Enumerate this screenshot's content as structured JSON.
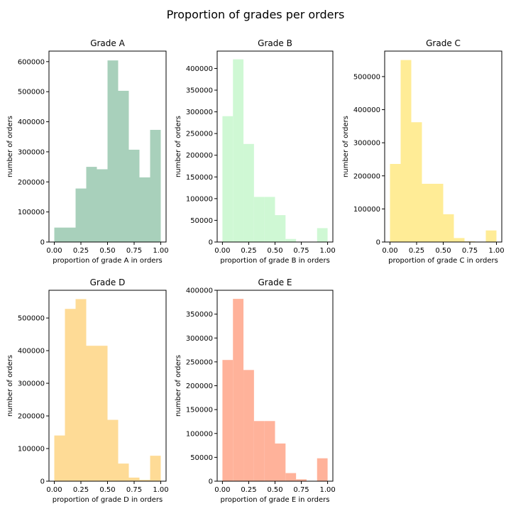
{
  "figure": {
    "title": "Proportion of grades per orders"
  },
  "chart_data": [
    {
      "type": "bar",
      "title": "Grade A",
      "xlabel": "proportion of grade A in orders",
      "ylabel": "number of orders",
      "color": "#a8d0bb",
      "xlim": [
        -0.05,
        1.05
      ],
      "ylim": [
        0,
        635000
      ],
      "xticks": [
        0.0,
        0.25,
        0.5,
        0.75,
        1.0
      ],
      "xtick_labels": [
        "0.00",
        "0.25",
        "0.50",
        "0.75",
        "1.00"
      ],
      "yticks": [
        0,
        100000,
        200000,
        300000,
        400000,
        500000,
        600000
      ],
      "ytick_labels": [
        "0",
        "100000",
        "200000",
        "300000",
        "400000",
        "500000",
        "600000"
      ],
      "bin_edges": [
        0.0,
        0.1,
        0.2,
        0.3,
        0.4,
        0.5,
        0.6,
        0.7,
        0.8,
        0.9,
        1.0
      ],
      "values": [
        48000,
        48000,
        178000,
        250000,
        242000,
        604000,
        503000,
        307000,
        215000,
        373000
      ]
    },
    {
      "type": "bar",
      "title": "Grade B",
      "xlabel": "proportion of grade B in orders",
      "ylabel": "number of orders",
      "color": "#cff8d4",
      "xlim": [
        -0.05,
        1.05
      ],
      "ylim": [
        0,
        440000
      ],
      "xticks": [
        0.0,
        0.25,
        0.5,
        0.75,
        1.0
      ],
      "xtick_labels": [
        "0.00",
        "0.25",
        "0.50",
        "0.75",
        "1.00"
      ],
      "yticks": [
        0,
        50000,
        100000,
        150000,
        200000,
        250000,
        300000,
        350000,
        400000
      ],
      "ytick_labels": [
        "0",
        "50000",
        "100000",
        "150000",
        "200000",
        "250000",
        "300000",
        "350000",
        "400000"
      ],
      "bin_edges": [
        0.0,
        0.1,
        0.2,
        0.3,
        0.4,
        0.5,
        0.6,
        0.7,
        0.8,
        0.9,
        1.0
      ],
      "values": [
        290000,
        421000,
        226000,
        104000,
        104000,
        62000,
        7000,
        0,
        0,
        32000
      ]
    },
    {
      "type": "bar",
      "title": "Grade C",
      "xlabel": "proportion of grade C in orders",
      "ylabel": "number of orders",
      "color": "#ffec96",
      "xlim": [
        -0.05,
        1.05
      ],
      "ylim": [
        0,
        577000
      ],
      "xticks": [
        0.0,
        0.25,
        0.5,
        0.75,
        1.0
      ],
      "xtick_labels": [
        "0.00",
        "0.25",
        "0.50",
        "0.75",
        "1.00"
      ],
      "yticks": [
        0,
        100000,
        200000,
        300000,
        400000,
        500000
      ],
      "ytick_labels": [
        "0",
        "100000",
        "200000",
        "300000",
        "400000",
        "500000"
      ],
      "bin_edges": [
        0.0,
        0.1,
        0.2,
        0.3,
        0.4,
        0.5,
        0.6,
        0.7,
        0.8,
        0.9,
        1.0
      ],
      "values": [
        236000,
        550000,
        362000,
        176000,
        176000,
        84000,
        12000,
        2000,
        0,
        35000
      ]
    },
    {
      "type": "bar",
      "title": "Grade D",
      "xlabel": "proportion of grade D in orders",
      "ylabel": "number of orders",
      "color": "#fedb96",
      "xlim": [
        -0.05,
        1.05
      ],
      "ylim": [
        0,
        585000
      ],
      "xticks": [
        0.0,
        0.25,
        0.5,
        0.75,
        1.0
      ],
      "xtick_labels": [
        "0.00",
        "0.25",
        "0.50",
        "0.75",
        "1.00"
      ],
      "yticks": [
        0,
        100000,
        200000,
        300000,
        400000,
        500000
      ],
      "ytick_labels": [
        "0",
        "100000",
        "200000",
        "300000",
        "400000",
        "500000"
      ],
      "bin_edges": [
        0.0,
        0.1,
        0.2,
        0.3,
        0.4,
        0.5,
        0.6,
        0.7,
        0.8,
        0.9,
        1.0
      ],
      "values": [
        140000,
        528000,
        558000,
        415000,
        415000,
        188000,
        54000,
        11000,
        4000,
        78000
      ]
    },
    {
      "type": "bar",
      "title": "Grade E",
      "xlabel": "proportion of grade E in orders",
      "ylabel": "number of orders",
      "color": "#ffb29a",
      "xlim": [
        -0.05,
        1.05
      ],
      "ylim": [
        0,
        400000
      ],
      "xticks": [
        0.0,
        0.25,
        0.5,
        0.75,
        1.0
      ],
      "xtick_labels": [
        "0.00",
        "0.25",
        "0.50",
        "0.75",
        "1.00"
      ],
      "yticks": [
        0,
        50000,
        100000,
        150000,
        200000,
        250000,
        300000,
        350000,
        400000
      ],
      "ytick_labels": [
        "0",
        "50000",
        "100000",
        "150000",
        "200000",
        "250000",
        "300000",
        "350000",
        "400000"
      ],
      "bin_edges": [
        0.0,
        0.1,
        0.2,
        0.3,
        0.4,
        0.5,
        0.6,
        0.7,
        0.8,
        0.9,
        1.0
      ],
      "values": [
        254000,
        382000,
        233000,
        126000,
        126000,
        79000,
        17000,
        4000,
        0,
        48000
      ]
    }
  ]
}
